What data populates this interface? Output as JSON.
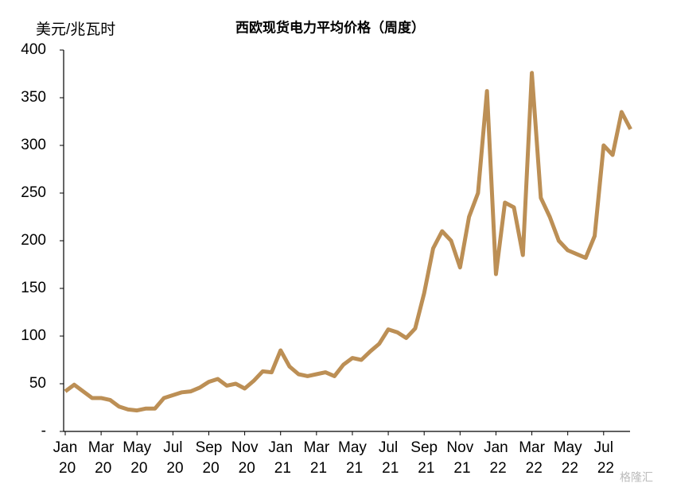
{
  "chart_data": {
    "type": "line",
    "title": "西欧现货电力平均价格（周度）",
    "y_label": "美元/兆瓦时",
    "watermark": "格隆汇",
    "categories": [
      "Jan 20",
      null,
      null,
      null,
      "Mar 20",
      null,
      null,
      null,
      "May 20",
      null,
      null,
      null,
      "Jul 20",
      null,
      null,
      null,
      "Sep 20",
      null,
      null,
      null,
      "Nov 20",
      null,
      null,
      null,
      "Jan 21",
      null,
      null,
      null,
      "Mar 21",
      null,
      null,
      null,
      "May 21",
      null,
      null,
      null,
      "Jul 21",
      null,
      null,
      null,
      "Sep 21",
      null,
      null,
      null,
      "Nov 21",
      null,
      null,
      null,
      "Jan 22",
      null,
      null,
      null,
      "Mar 22",
      null,
      null,
      null,
      "May 22",
      null,
      null,
      null,
      "Jul 22",
      null,
      null,
      null
    ],
    "series": [
      {
        "name": "西欧现货电力平均价格",
        "color": "#bc8f55",
        "values": [
          42,
          49,
          42,
          35,
          35,
          33,
          26,
          23,
          22,
          24,
          24,
          35,
          38,
          41,
          42,
          46,
          52,
          55,
          48,
          50,
          45,
          53,
          63,
          62,
          85,
          68,
          60,
          58,
          60,
          62,
          58,
          70,
          77,
          75,
          84,
          92,
          107,
          104,
          98,
          108,
          145,
          192,
          210,
          200,
          172,
          225,
          250,
          357,
          165,
          240,
          235,
          185,
          376,
          245,
          225,
          200,
          190,
          186,
          182,
          205,
          300,
          290,
          335,
          317
        ]
      }
    ],
    "ylim": [
      0,
      400
    ],
    "yticks": [
      {
        "value": 0,
        "label": "-"
      },
      50,
      100,
      150,
      200,
      250,
      300,
      350,
      400
    ]
  }
}
